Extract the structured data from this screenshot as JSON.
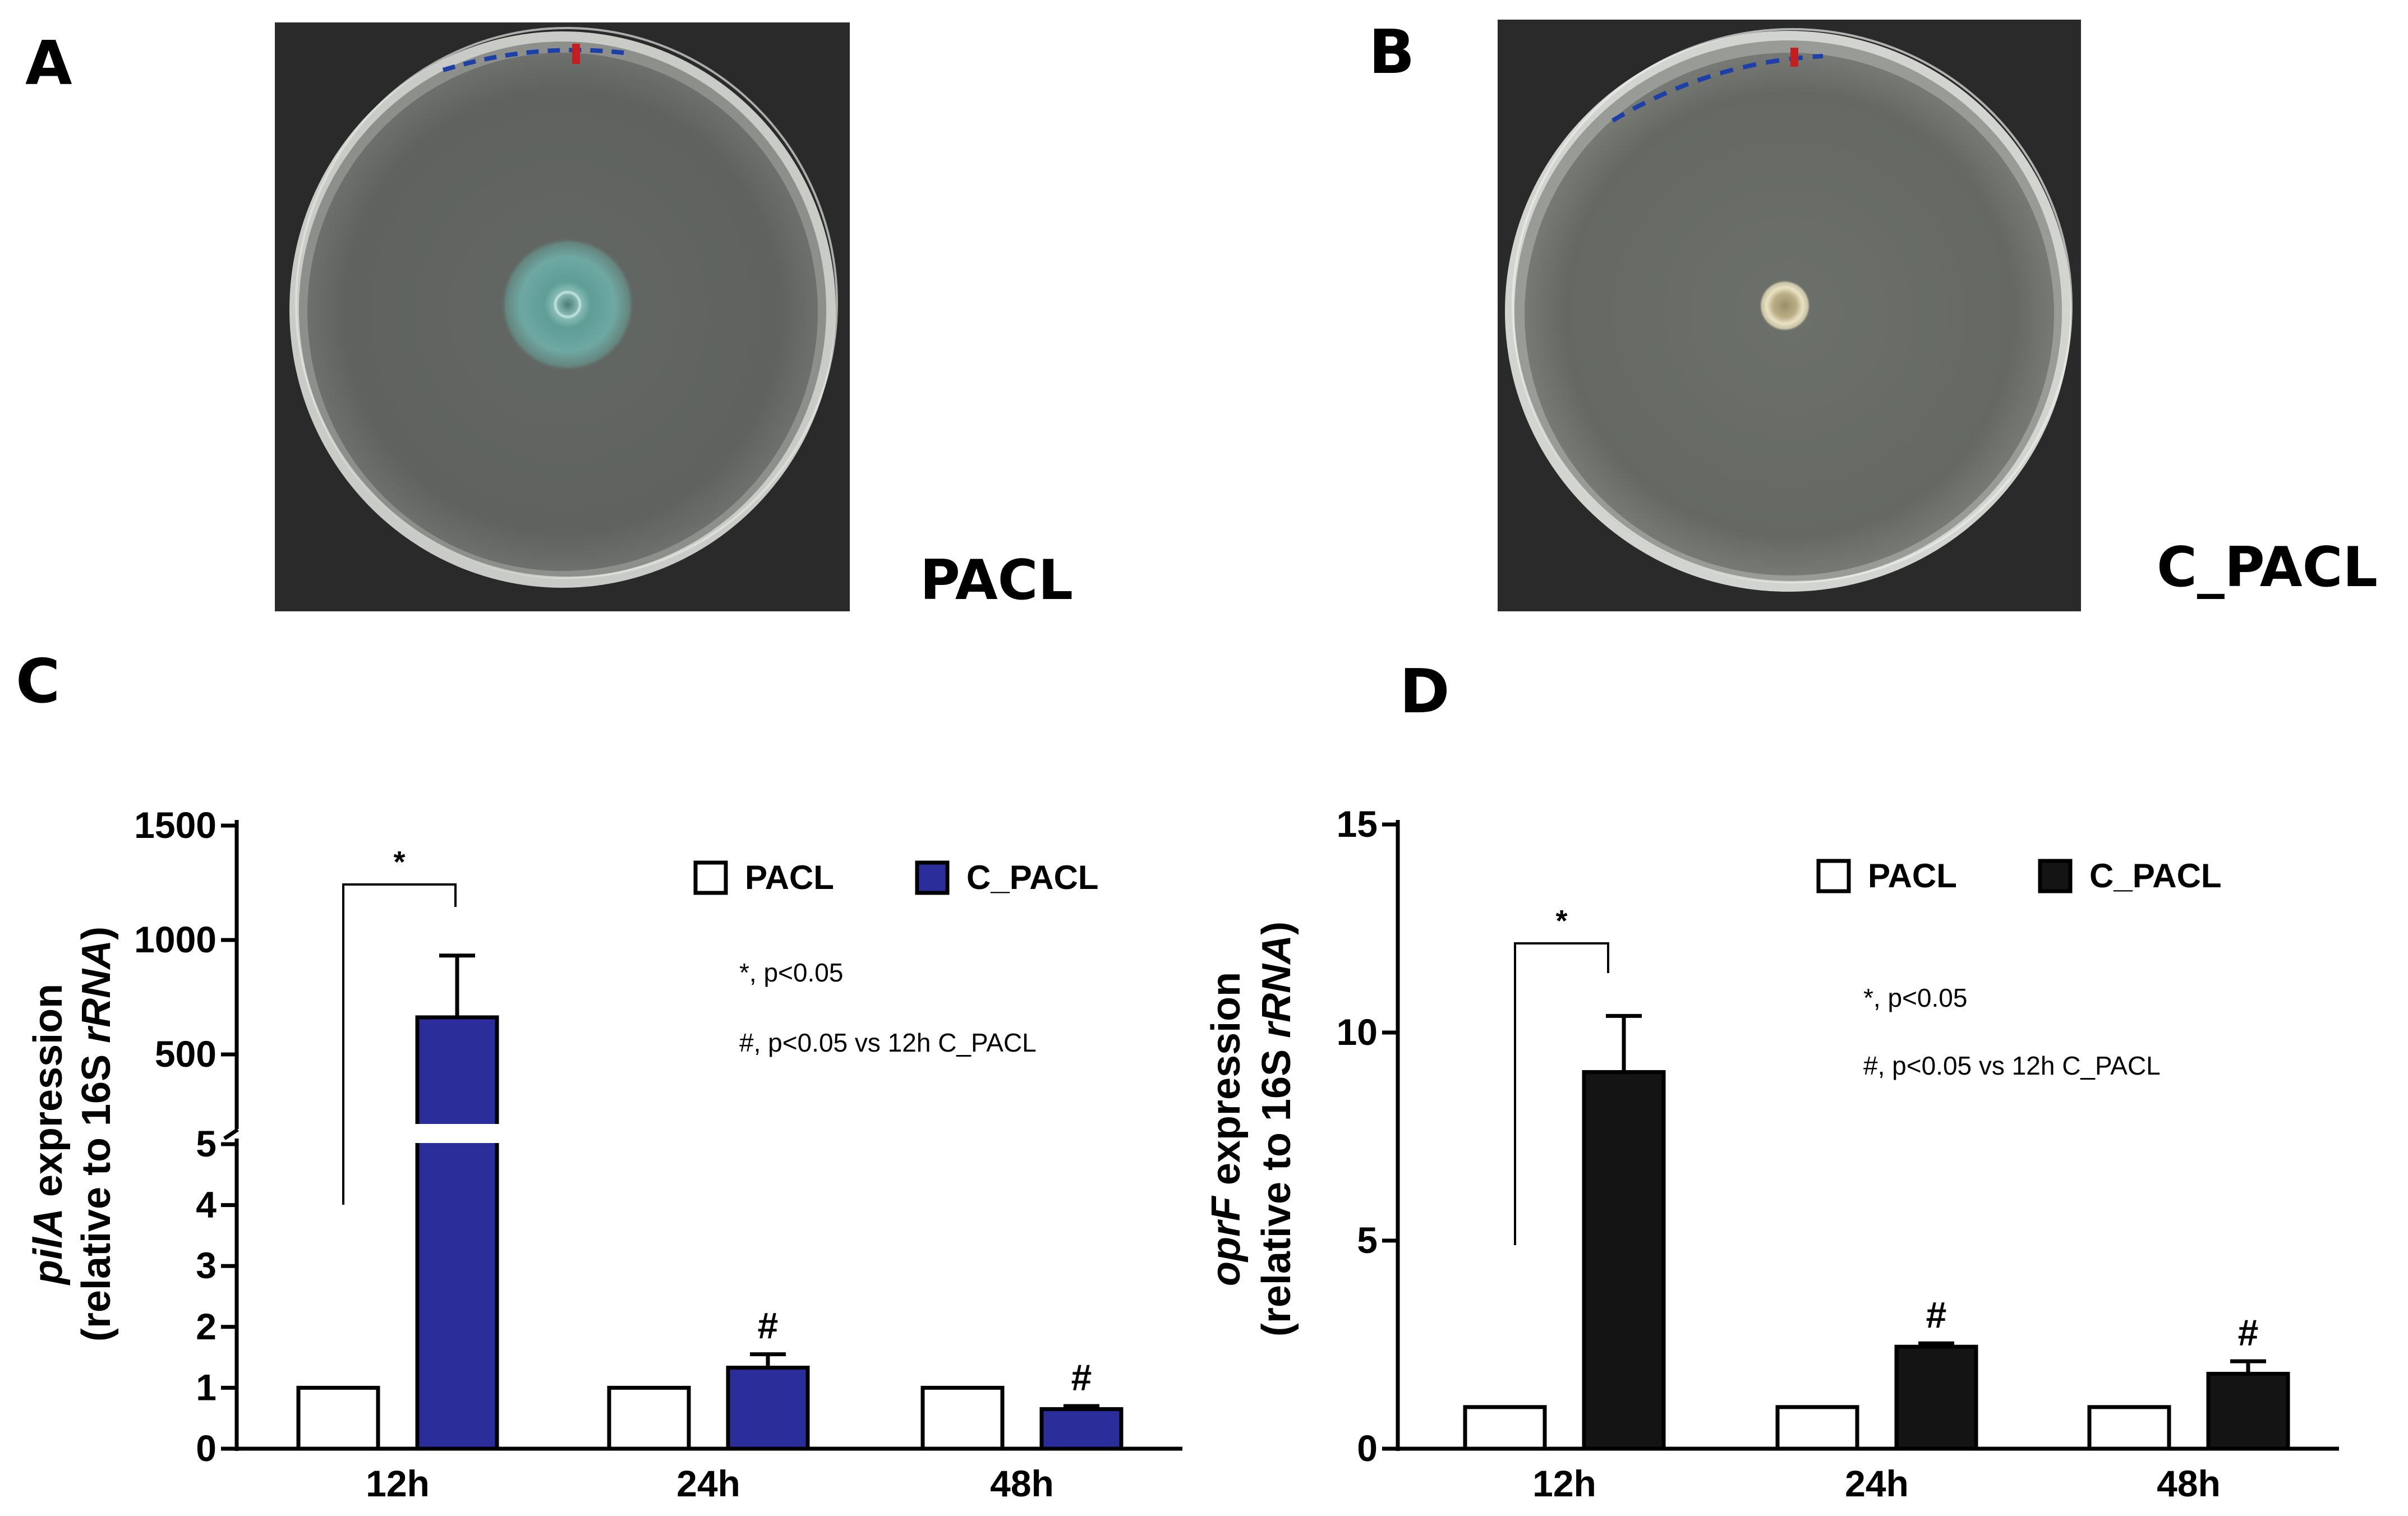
{
  "panels": {
    "A": {
      "letter": "A",
      "label": "PACL"
    },
    "B": {
      "letter": "B",
      "label": "C_PACL"
    },
    "C": {
      "letter": "C"
    },
    "D": {
      "letter": "D"
    }
  },
  "colors": {
    "c_pacl_C": "#2b2e9a",
    "c_pacl_D": "#141414",
    "pacl": "#ffffff",
    "plate_background": "#2a2a2a",
    "agar": "#5d605c"
  },
  "plates": {
    "A": {
      "colony": "large blue-green swarming colony"
    },
    "B": {
      "colony": "small pale yellow colony"
    }
  },
  "chart_data": [
    {
      "type": "bar",
      "panel": "C",
      "categories": [
        "12h",
        "24h",
        "48h"
      ],
      "series": [
        {
          "name": "PACL",
          "values": [
            1,
            1,
            1
          ],
          "errors": [
            0,
            0,
            0
          ]
        },
        {
          "name": "C_PACL",
          "values": [
            662,
            1.33,
            0.65
          ],
          "errors": [
            270,
            0.22,
            0.05
          ]
        }
      ],
      "ylabel_gene": "pilA",
      "ylabel_rest": " expression",
      "ylabel_line2_prefix": "(relative to 16S ",
      "ylabel_line2_italic": "rRNA",
      "ylabel_line2_suffix": ")",
      "y_axis_broken": true,
      "lower_segment": {
        "ylim": [
          0,
          5
        ],
        "ticks": [
          "0",
          "1",
          "2",
          "3",
          "4",
          "5"
        ]
      },
      "upper_segment": {
        "ylim": [
          300,
          1500
        ],
        "ticks": [
          "500",
          "1000",
          "1500"
        ]
      },
      "legend": [
        "PACL",
        "C_PACL"
      ],
      "legend_position": "top-right",
      "annotations": {
        "star": "*",
        "hash": "#",
        "note1": "*, p<0.05",
        "note2": "#, p<0.05 vs 12h C_PACL"
      }
    },
    {
      "type": "bar",
      "panel": "D",
      "categories": [
        "12h",
        "24h",
        "48h"
      ],
      "series": [
        {
          "name": "PACL",
          "values": [
            1,
            1,
            1
          ],
          "errors": [
            0,
            0,
            0
          ]
        },
        {
          "name": "C_PACL",
          "values": [
            9.05,
            2.45,
            1.8
          ],
          "errors": [
            1.35,
            0.08,
            0.3
          ]
        }
      ],
      "ylabel_gene": "oprF",
      "ylabel_rest": " expression",
      "ylabel_line2_prefix": "(relative to 16S ",
      "ylabel_line2_italic": "rRNA",
      "ylabel_line2_suffix": ")",
      "ylim": [
        0,
        15
      ],
      "ticks": [
        "0",
        "5",
        "10",
        "15"
      ],
      "legend": [
        "PACL",
        "C_PACL"
      ],
      "legend_position": "top-right",
      "annotations": {
        "star": "*",
        "hash": "#",
        "note1": "*, p<0.05",
        "note2": "#, p<0.05 vs 12h C_PACL"
      }
    }
  ]
}
